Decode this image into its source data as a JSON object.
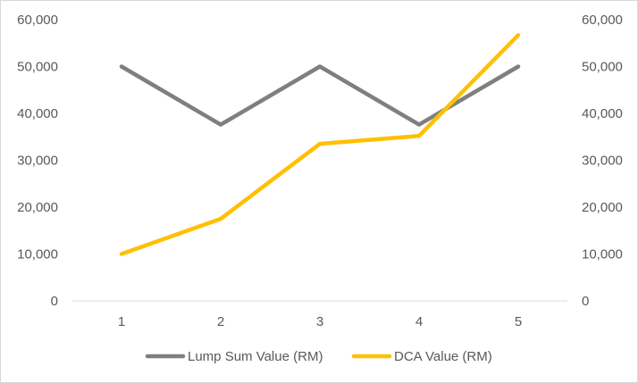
{
  "chart_data": {
    "type": "line",
    "categories": [
      "1",
      "2",
      "3",
      "4",
      "5"
    ],
    "series": [
      {
        "name": "Lump Sum Value (RM)",
        "values": [
          50000,
          37600,
          50000,
          37600,
          50000
        ],
        "color": "#7f7f7f",
        "axis": "left"
      },
      {
        "name": "DCA Value (RM)",
        "values": [
          10000,
          17500,
          33500,
          35200,
          56700
        ],
        "color": "#ffc000",
        "axis": "right"
      }
    ],
    "y_left": {
      "min": 0,
      "max": 60000,
      "step": 10000,
      "tick_labels": [
        "0",
        "10,000",
        "20,000",
        "30,000",
        "40,000",
        "50,000",
        "60,000"
      ]
    },
    "y_right": {
      "min": 0,
      "max": 60000,
      "step": 10000,
      "tick_labels": [
        "0",
        "10,000",
        "20,000",
        "30,000",
        "40,000",
        "50,000",
        "60,000"
      ]
    },
    "grid": false,
    "legend": "bottom",
    "title": "",
    "xlabel": "",
    "ylabel": ""
  }
}
